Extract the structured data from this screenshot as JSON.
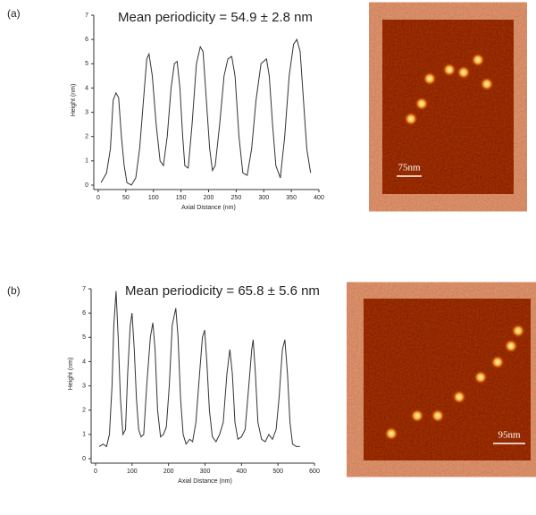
{
  "chart_data": [
    {
      "type": "line",
      "panel_label": "(a)",
      "annotation": "Mean periodicity = 54.9 ± 2.8 nm",
      "x_label": "Axial Distance (nm)",
      "y_label": "Height (nm)",
      "color": "#333333",
      "xlim": [
        0,
        400
      ],
      "xticks": [
        0,
        50,
        100,
        150,
        200,
        250,
        300,
        350,
        400
      ],
      "ylim": [
        0,
        7
      ],
      "yticks": [
        0,
        1,
        2,
        3,
        4,
        5,
        6,
        7
      ],
      "x": [
        5,
        15,
        22,
        27,
        32,
        37,
        42,
        47,
        52,
        60,
        68,
        75,
        82,
        88,
        92,
        98,
        105,
        112,
        118,
        125,
        132,
        138,
        143,
        148,
        153,
        157,
        163,
        170,
        178,
        185,
        190,
        196,
        202,
        207,
        212,
        220,
        228,
        235,
        242,
        248,
        255,
        262,
        270,
        278,
        286,
        295,
        305,
        310,
        316,
        322,
        330,
        338,
        346,
        354,
        360,
        366,
        372,
        378,
        385
      ],
      "values": [
        0.1,
        0.5,
        1.5,
        3.5,
        3.8,
        3.6,
        2,
        0.8,
        0.1,
        0,
        0.3,
        1.5,
        3.5,
        5.2,
        5.4,
        4.5,
        2.5,
        1.0,
        0.8,
        2,
        4,
        5,
        5.1,
        4,
        2,
        0.8,
        0.7,
        2.5,
        5,
        5.7,
        5.5,
        3.5,
        1.5,
        0.6,
        0.8,
        2.5,
        4.5,
        5.2,
        5.3,
        4.5,
        2,
        0.5,
        0.4,
        1.5,
        3.5,
        5,
        5.2,
        4.5,
        2.5,
        0.8,
        0.3,
        2,
        4.5,
        5.8,
        6,
        5.5,
        3.5,
        1.5,
        0.5
      ]
    },
    {
      "type": "line",
      "panel_label": "(b)",
      "annotation": "Mean periodicity = 65.8 ± 5.6 nm",
      "x_label": "Axial Distance (nm)",
      "y_label": "Height (nm)",
      "color": "#333333",
      "xlim": [
        0,
        600
      ],
      "xticks": [
        0,
        100,
        200,
        300,
        400,
        500,
        600
      ],
      "ylim": [
        0,
        7
      ],
      "yticks": [
        0,
        1,
        2,
        3,
        4,
        5,
        6,
        7
      ],
      "x": [
        10,
        20,
        30,
        38,
        45,
        50,
        56,
        62,
        68,
        75,
        82,
        88,
        95,
        100,
        106,
        112,
        118,
        125,
        132,
        140,
        150,
        157,
        163,
        170,
        178,
        186,
        194,
        202,
        210,
        220,
        226,
        233,
        240,
        248,
        258,
        266,
        275,
        285,
        293,
        299,
        305,
        312,
        320,
        330,
        340,
        350,
        360,
        368,
        375,
        382,
        390,
        400,
        410,
        420,
        428,
        432,
        438,
        445,
        455,
        465,
        475,
        485,
        495,
        503,
        512,
        519,
        526,
        533,
        540,
        550,
        560
      ],
      "values": [
        0.5,
        0.6,
        0.5,
        1.0,
        3,
        5.5,
        6.9,
        5,
        2.5,
        1.0,
        1.2,
        3.5,
        5.5,
        6.0,
        4.5,
        2.5,
        1.2,
        0.9,
        1.0,
        3,
        5,
        5.6,
        4.5,
        2,
        0.9,
        1.0,
        1.3,
        3,
        5.5,
        6.2,
        5,
        2.5,
        1.0,
        0.6,
        0.8,
        0.7,
        1.5,
        3.5,
        5,
        5.3,
        4,
        2,
        0.9,
        0.7,
        1.0,
        1.5,
        3.5,
        4.5,
        3.5,
        1.5,
        0.8,
        0.9,
        1.2,
        3,
        4.5,
        4.9,
        3.5,
        1.5,
        0.8,
        0.7,
        1.0,
        0.8,
        1.2,
        2.5,
        4.5,
        4.9,
        3.5,
        1.5,
        0.6,
        0.5,
        0.5
      ]
    }
  ],
  "images": [
    {
      "scale_bar": "75nm"
    },
    {
      "scale_bar": "95nm"
    }
  ]
}
